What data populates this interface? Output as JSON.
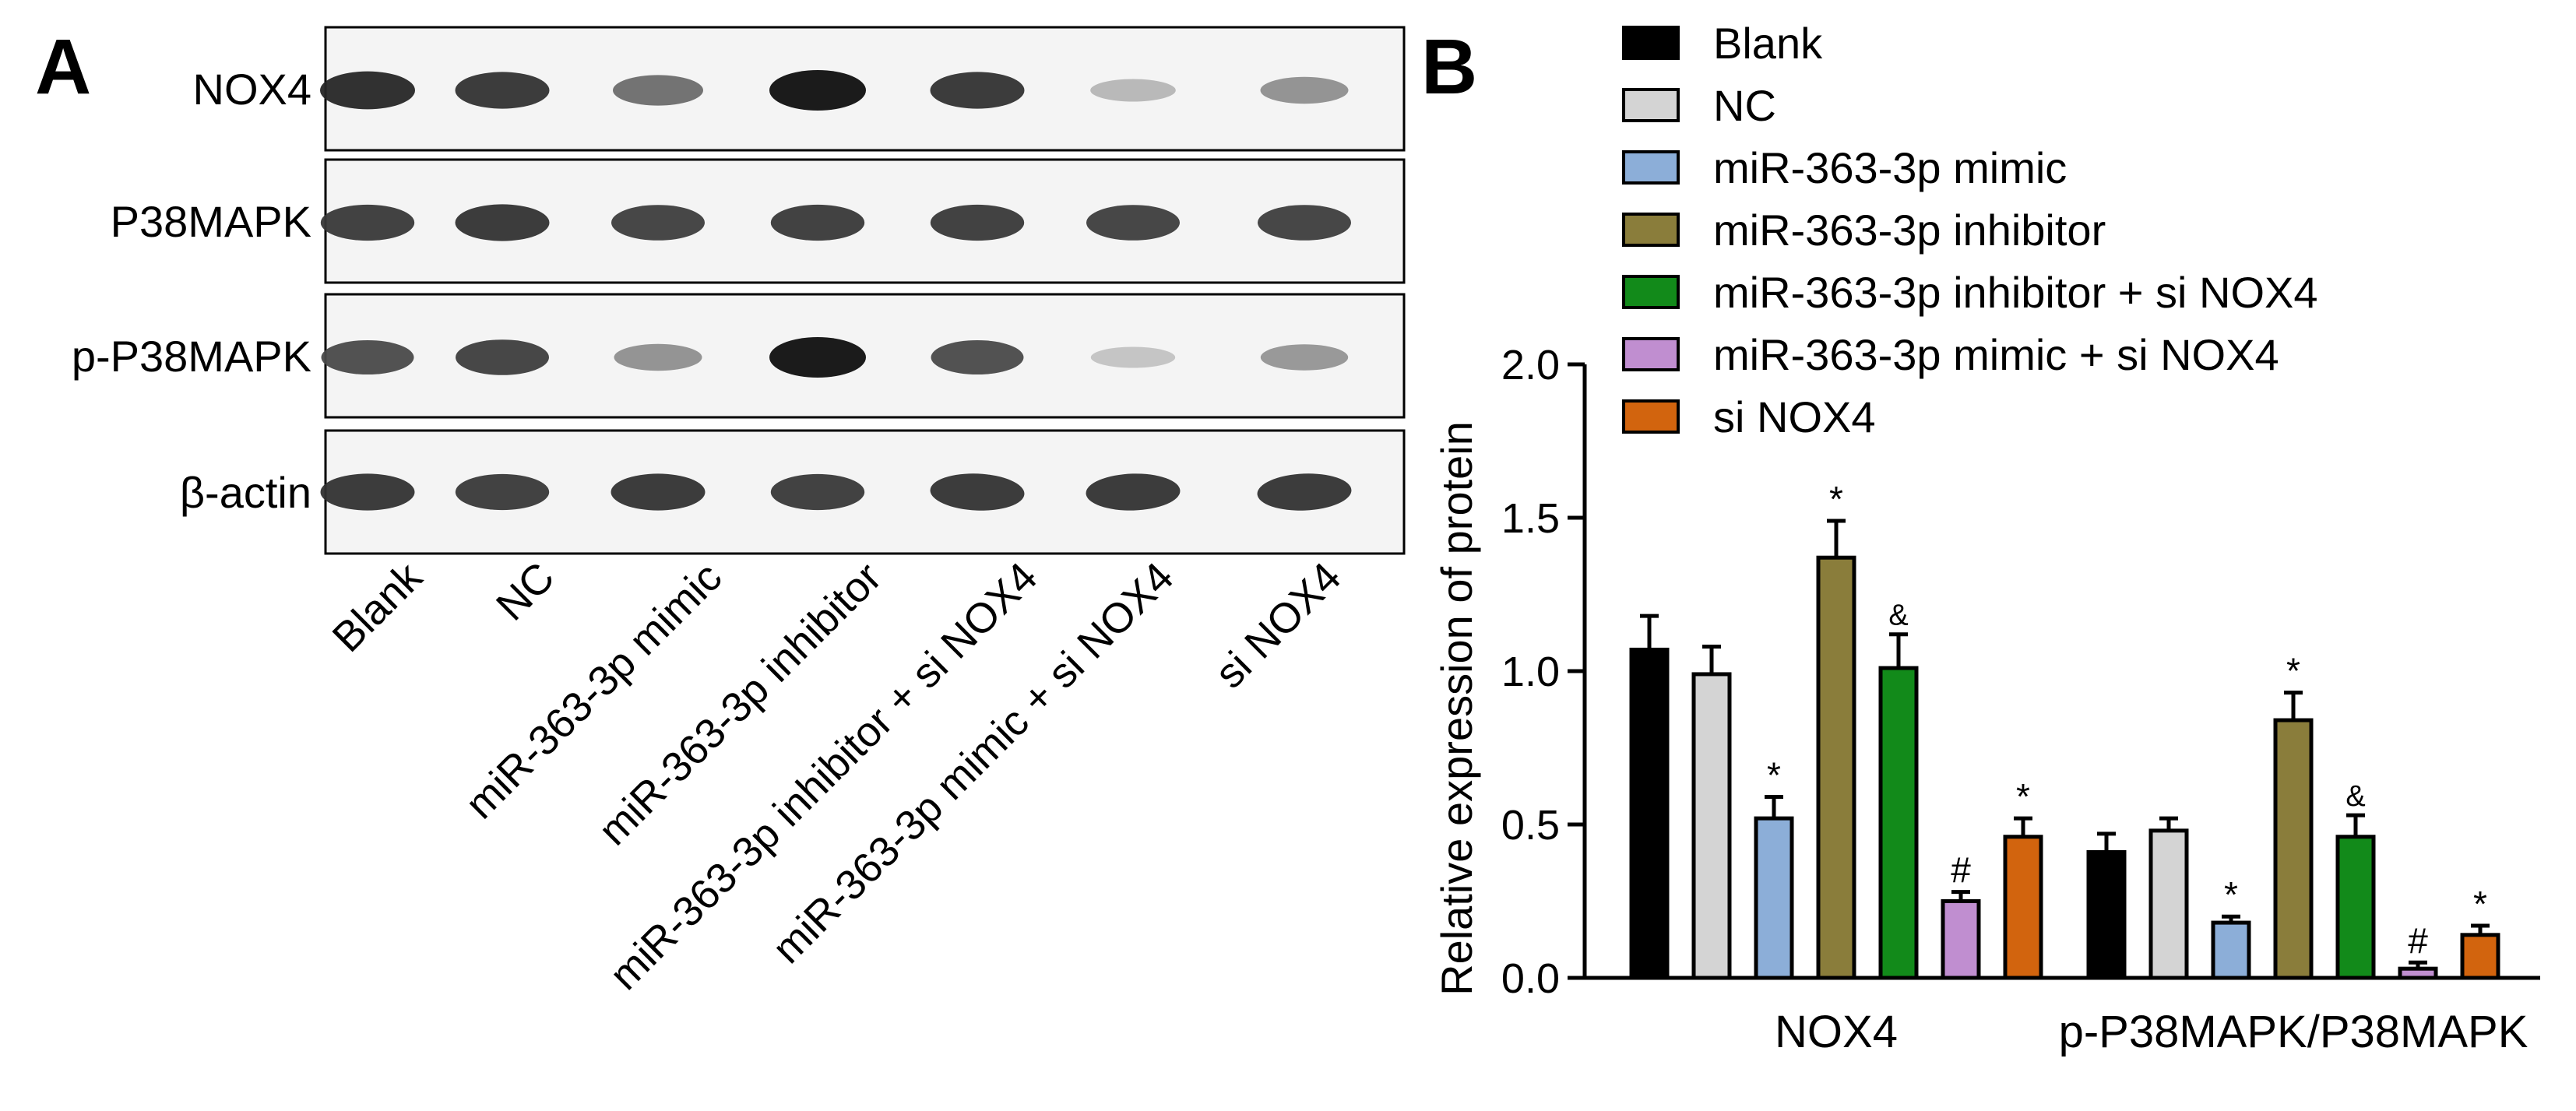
{
  "panel_a": {
    "letter": "A",
    "rows": [
      {
        "label": "NOX4",
        "intensity": [
          0.9,
          0.85,
          0.6,
          1.0,
          0.85,
          0.28,
          0.45
        ]
      },
      {
        "label": "P38MAPK",
        "intensity": [
          0.82,
          0.85,
          0.8,
          0.82,
          0.82,
          0.8,
          0.8
        ]
      },
      {
        "label": "p-P38MAPK",
        "intensity": [
          0.75,
          0.8,
          0.45,
          1.0,
          0.75,
          0.22,
          0.42
        ]
      },
      {
        "label": "β-actin",
        "intensity": [
          0.85,
          0.82,
          0.85,
          0.82,
          0.85,
          0.85,
          0.85
        ]
      }
    ],
    "lanes": [
      "Blank",
      "NC",
      "miR-363-3p mimic",
      "miR-363-3p inhibitor",
      "miR-363-3p inhibitor + si NOX4",
      "miR-363-3p mimic + si NOX4",
      "si NOX4"
    ]
  },
  "panel_b": {
    "letter": "B"
  },
  "chart_data": {
    "type": "bar",
    "categories": [
      "NOX4",
      "p-P38MAPK/P38MAPK"
    ],
    "ylabel": "Relative expression of protein",
    "ylim": [
      0,
      2.0
    ],
    "yticks": [
      "0.0",
      "0.5",
      "1.0",
      "1.5",
      "2.0"
    ],
    "legend_position": "top-right",
    "series": [
      {
        "name": "Blank",
        "color": "#000000",
        "values": [
          1.07,
          0.41
        ],
        "errors": [
          0.11,
          0.06
        ],
        "marks": [
          "",
          ""
        ]
      },
      {
        "name": "NC",
        "color": "#d4d4d4",
        "values": [
          0.99,
          0.48
        ],
        "errors": [
          0.09,
          0.04
        ],
        "marks": [
          "",
          ""
        ]
      },
      {
        "name": "miR-363-3p mimic",
        "color": "#8caed8",
        "values": [
          0.52,
          0.18
        ],
        "errors": [
          0.07,
          0.02
        ],
        "marks": [
          "*",
          "*"
        ]
      },
      {
        "name": "miR-363-3p inhibitor",
        "color": "#8a7d3b",
        "values": [
          1.37,
          0.84
        ],
        "errors": [
          0.12,
          0.09
        ],
        "marks": [
          "*",
          "*"
        ]
      },
      {
        "name": "miR-363-3p inhibitor + si NOX4",
        "color": "#128a1a",
        "values": [
          1.01,
          0.46
        ],
        "errors": [
          0.11,
          0.07
        ],
        "marks": [
          "&",
          "&"
        ]
      },
      {
        "name": "miR-363-3p mimic + si NOX4",
        "color": "#c08ed0",
        "values": [
          0.25,
          0.03
        ],
        "errors": [
          0.03,
          0.02
        ],
        "marks": [
          "#",
          "#"
        ]
      },
      {
        "name": "si NOX4",
        "color": "#d2640e",
        "values": [
          0.46,
          0.14
        ],
        "errors": [
          0.06,
          0.03
        ],
        "marks": [
          "*",
          "*"
        ]
      }
    ]
  }
}
